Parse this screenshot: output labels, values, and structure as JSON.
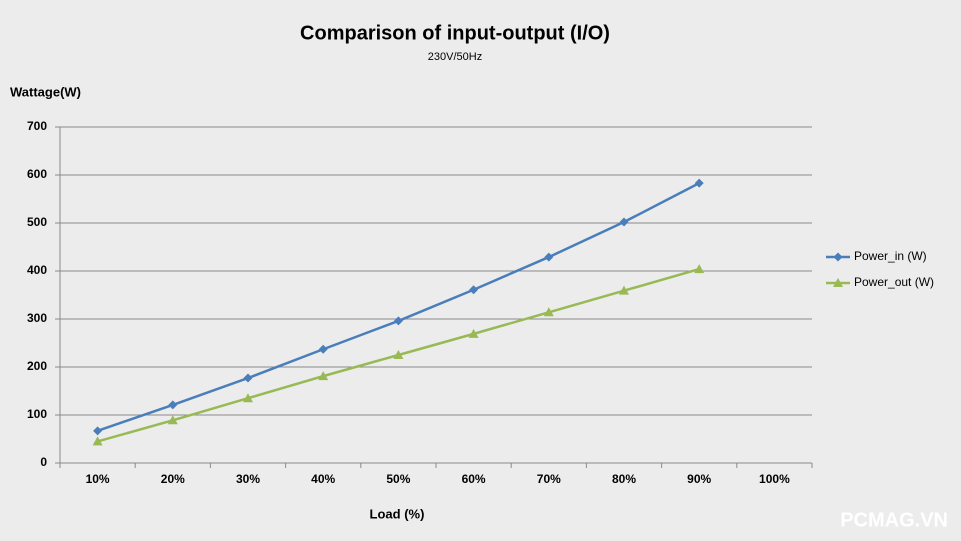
{
  "chart_data": {
    "type": "line",
    "title": "Comparison of input-output (I/O)",
    "subtitle": "230V/50Hz",
    "y_label": "Wattage(W)",
    "x_label": "Load (%)",
    "watermark": "PCMAG.VN",
    "categories": [
      "10%",
      "20%",
      "30%",
      "40%",
      "50%",
      "60%",
      "70%",
      "80%",
      "90%",
      "100%"
    ],
    "series": [
      {
        "name": "Power_in (W)",
        "color": "#4a7ebb",
        "marker": "diamond",
        "values": [
          67,
          121,
          177,
          237,
          296,
          361,
          429,
          502,
          583,
          null
        ]
      },
      {
        "name": "Power_out (W)",
        "color": "#98b954",
        "marker": "triangle",
        "values": [
          45,
          89,
          135,
          181,
          225,
          269,
          314,
          359,
          404,
          null
        ]
      }
    ],
    "ylim": [
      0,
      700
    ],
    "yticks": [
      0,
      100,
      200,
      300,
      400,
      500,
      600,
      700
    ],
    "grid": true,
    "legend": "right"
  }
}
